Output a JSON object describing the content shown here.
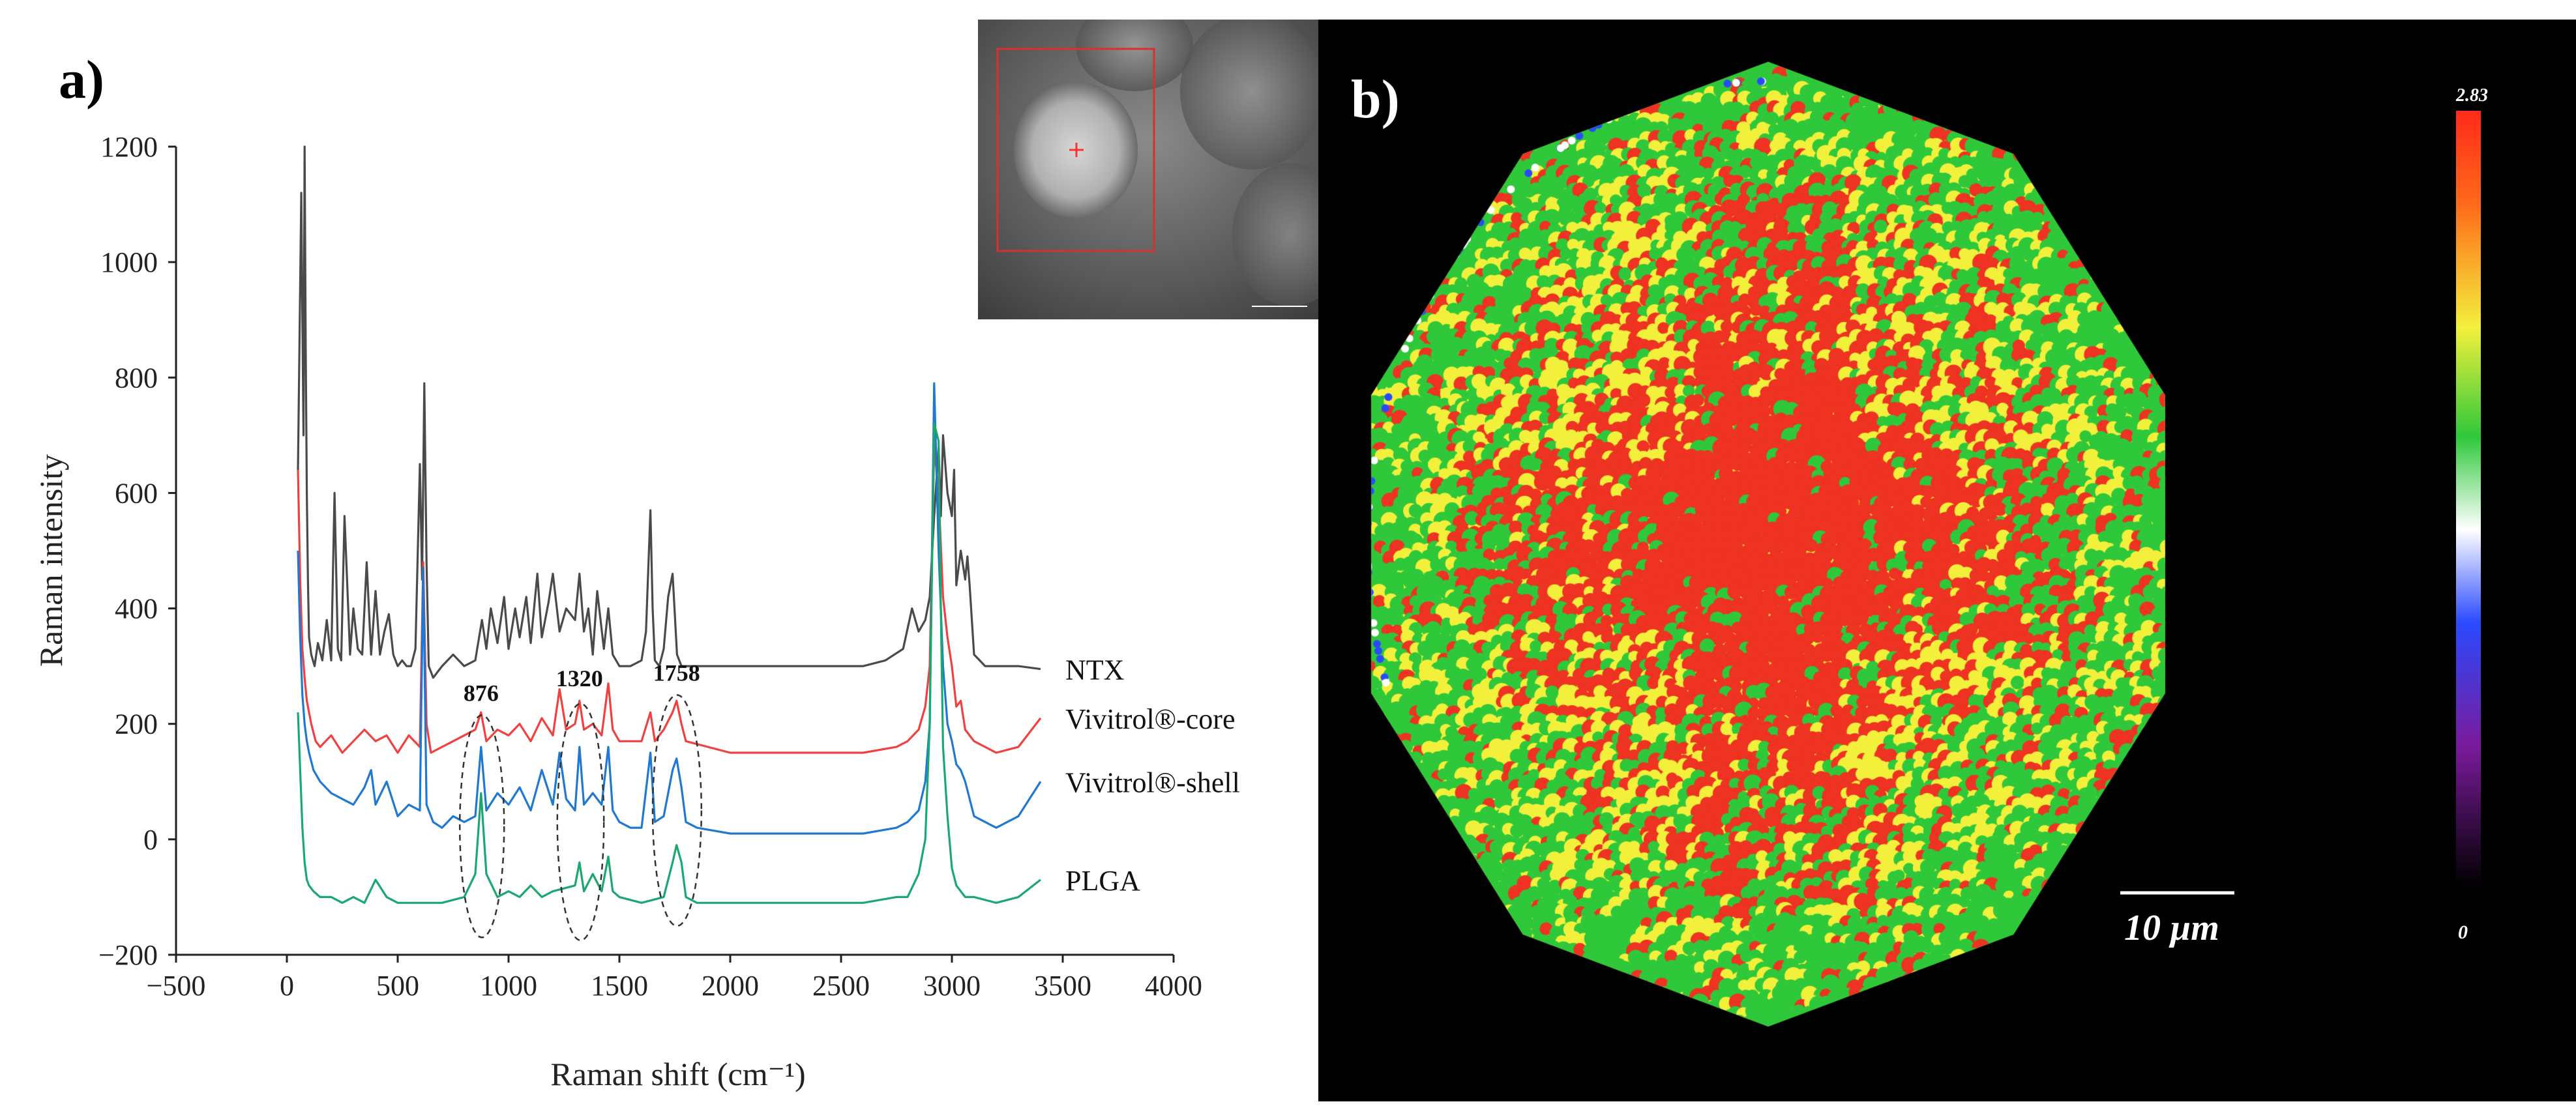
{
  "panel_a": {
    "label": "a)",
    "chart_data": {
      "type": "line",
      "xlabel": "Raman shift (cm⁻¹)",
      "ylabel": "Raman intensity",
      "xlim": [
        -500,
        4000
      ],
      "ylim": [
        -200,
        1200
      ],
      "xticks": [
        -500,
        0,
        500,
        1000,
        1500,
        2000,
        2500,
        3000,
        3500,
        4000
      ],
      "xtick_labels": [
        "−500",
        "0",
        "500",
        "1000",
        "1500",
        "2000",
        "2500",
        "3000",
        "3500",
        "4000"
      ],
      "yticks": [
        -200,
        0,
        200,
        400,
        600,
        800,
        1000,
        1200
      ],
      "ytick_labels": [
        "−200",
        "0",
        "200",
        "400",
        "600",
        "800",
        "1000",
        "1200"
      ],
      "legend_placement": "right",
      "series": [
        {
          "name": "NTX",
          "color": "#4a4a4a",
          "x": [
            50,
            65,
            70,
            75,
            80,
            85,
            90,
            95,
            100,
            110,
            125,
            140,
            160,
            180,
            200,
            215,
            230,
            245,
            260,
            285,
            300,
            320,
            340,
            360,
            380,
            400,
            420,
            440,
            460,
            480,
            500,
            520,
            540,
            560,
            580,
            600,
            610,
            620,
            630,
            640,
            660,
            700,
            750,
            800,
            850,
            880,
            900,
            920,
            950,
            980,
            1000,
            1030,
            1050,
            1080,
            1100,
            1130,
            1150,
            1180,
            1200,
            1230,
            1260,
            1300,
            1320,
            1340,
            1360,
            1380,
            1400,
            1430,
            1450,
            1470,
            1500,
            1550,
            1600,
            1620,
            1640,
            1650,
            1660,
            1680,
            1700,
            1720,
            1740,
            1760,
            1780,
            1800,
            2000,
            2200,
            2400,
            2600,
            2700,
            2780,
            2820,
            2850,
            2880,
            2900,
            2920,
            2940,
            2950,
            2960,
            2980,
            3000,
            3010,
            3020,
            3040,
            3060,
            3070,
            3080,
            3100,
            3150,
            3200,
            3300,
            3400
          ],
          "y": [
            640,
            1120,
            900,
            700,
            1200,
            850,
            600,
            450,
            350,
            320,
            300,
            340,
            310,
            380,
            310,
            600,
            330,
            310,
            560,
            320,
            400,
            330,
            320,
            480,
            320,
            430,
            320,
            360,
            390,
            320,
            300,
            310,
            300,
            300,
            330,
            650,
            450,
            790,
            480,
            300,
            280,
            300,
            320,
            300,
            310,
            380,
            330,
            400,
            340,
            420,
            330,
            400,
            350,
            420,
            340,
            460,
            350,
            410,
            460,
            360,
            400,
            380,
            460,
            360,
            400,
            320,
            430,
            330,
            400,
            320,
            300,
            300,
            310,
            360,
            570,
            400,
            310,
            300,
            330,
            420,
            460,
            320,
            300,
            300,
            300,
            300,
            300,
            300,
            310,
            330,
            400,
            360,
            380,
            420,
            560,
            680,
            560,
            700,
            600,
            560,
            640,
            440,
            500,
            450,
            490,
            440,
            320,
            300,
            300,
            300,
            295
          ]
        },
        {
          "name": "Vivitrol®-core",
          "color": "#f04040",
          "x": [
            50,
            60,
            70,
            80,
            90,
            100,
            110,
            130,
            150,
            200,
            250,
            300,
            350,
            400,
            450,
            500,
            550,
            600,
            615,
            630,
            650,
            700,
            750,
            800,
            850,
            876,
            900,
            950,
            1000,
            1050,
            1100,
            1150,
            1200,
            1230,
            1260,
            1300,
            1320,
            1340,
            1380,
            1420,
            1450,
            1470,
            1500,
            1550,
            1600,
            1640,
            1660,
            1700,
            1740,
            1758,
            1780,
            1800,
            2000,
            2200,
            2400,
            2600,
            2750,
            2800,
            2850,
            2880,
            2900,
            2920,
            2940,
            2960,
            2980,
            3000,
            3020,
            3040,
            3060,
            3100,
            3200,
            3300,
            3400
          ],
          "y": [
            640,
            450,
            330,
            280,
            240,
            220,
            200,
            170,
            160,
            180,
            150,
            170,
            190,
            170,
            180,
            150,
            180,
            160,
            480,
            200,
            150,
            160,
            170,
            180,
            190,
            220,
            170,
            190,
            180,
            200,
            170,
            210,
            180,
            260,
            190,
            200,
            240,
            190,
            200,
            180,
            270,
            190,
            170,
            170,
            170,
            220,
            170,
            190,
            220,
            240,
            200,
            170,
            150,
            150,
            150,
            150,
            160,
            170,
            190,
            230,
            300,
            680,
            600,
            420,
            350,
            300,
            230,
            240,
            190,
            170,
            150,
            160,
            210
          ]
        },
        {
          "name": "Vivitrol®-shell",
          "color": "#1f78d1",
          "x": [
            50,
            60,
            70,
            80,
            90,
            100,
            120,
            150,
            200,
            250,
            300,
            350,
            380,
            400,
            450,
            500,
            550,
            600,
            615,
            630,
            660,
            700,
            750,
            800,
            850,
            876,
            900,
            950,
            1000,
            1050,
            1100,
            1150,
            1200,
            1230,
            1260,
            1300,
            1320,
            1340,
            1380,
            1420,
            1450,
            1470,
            1500,
            1550,
            1600,
            1640,
            1660,
            1700,
            1740,
            1758,
            1780,
            1800,
            1850,
            2000,
            2200,
            2400,
            2600,
            2750,
            2800,
            2850,
            2880,
            2900,
            2920,
            2940,
            2960,
            2980,
            3000,
            3020,
            3040,
            3060,
            3100,
            3200,
            3300,
            3400
          ],
          "y": [
            500,
            350,
            250,
            200,
            170,
            150,
            120,
            100,
            80,
            70,
            60,
            90,
            120,
            60,
            100,
            40,
            60,
            50,
            470,
            60,
            30,
            20,
            40,
            30,
            40,
            160,
            50,
            80,
            60,
            90,
            50,
            120,
            60,
            150,
            70,
            50,
            160,
            60,
            80,
            60,
            160,
            50,
            30,
            20,
            20,
            150,
            30,
            40,
            120,
            140,
            90,
            30,
            20,
            10,
            10,
            10,
            10,
            20,
            30,
            50,
            100,
            200,
            790,
            500,
            300,
            200,
            170,
            130,
            120,
            100,
            40,
            20,
            40,
            100
          ]
        },
        {
          "name": "PLGA",
          "color": "#1aa870",
          "x": [
            50,
            60,
            70,
            80,
            90,
            100,
            120,
            150,
            200,
            250,
            300,
            350,
            400,
            450,
            500,
            600,
            700,
            800,
            850,
            876,
            900,
            950,
            1000,
            1050,
            1100,
            1150,
            1200,
            1300,
            1320,
            1340,
            1380,
            1420,
            1450,
            1470,
            1500,
            1600,
            1700,
            1740,
            1758,
            1780,
            1800,
            1850,
            2000,
            2200,
            2400,
            2600,
            2750,
            2800,
            2850,
            2880,
            2900,
            2920,
            2940,
            2950,
            2960,
            2980,
            3000,
            3020,
            3040,
            3060,
            3100,
            3200,
            3300,
            3400
          ],
          "y": [
            220,
            120,
            20,
            -40,
            -70,
            -80,
            -90,
            -100,
            -100,
            -110,
            -100,
            -110,
            -70,
            -100,
            -110,
            -110,
            -110,
            -100,
            -60,
            80,
            -60,
            -100,
            -90,
            -100,
            -80,
            -100,
            -90,
            -80,
            -40,
            -90,
            -60,
            -90,
            -30,
            -90,
            -100,
            -110,
            -100,
            -40,
            -10,
            -40,
            -100,
            -110,
            -110,
            -110,
            -110,
            -110,
            -100,
            -100,
            -60,
            0,
            200,
            720,
            690,
            400,
            160,
            40,
            -50,
            -80,
            -90,
            -100,
            -100,
            -110,
            -100,
            -70
          ]
        }
      ],
      "annotations": [
        {
          "text": "876",
          "x": 876,
          "y": 240
        },
        {
          "text": "1320",
          "x": 1320,
          "y": 265
        },
        {
          "text": "1758",
          "x": 1758,
          "y": 275
        }
      ],
      "dashed_regions": [
        {
          "x0": 780,
          "x1": 980,
          "y0": -170,
          "y1": 215
        },
        {
          "x0": 1220,
          "x1": 1430,
          "y0": -175,
          "y1": 235
        },
        {
          "x0": 1650,
          "x1": 1870,
          "y0": -150,
          "y1": 250
        }
      ]
    }
  },
  "panel_b": {
    "label": "b)",
    "colorbar_max": "2.83",
    "colorbar_min": "0",
    "scalebar_label": "10 µm",
    "colors": {
      "red": "#ee3322",
      "yellow": "#f3f03c",
      "green": "#2ec83a",
      "white": "#ffffff",
      "blue": "#2a4aff",
      "purple": "#7a1a9a"
    }
  }
}
